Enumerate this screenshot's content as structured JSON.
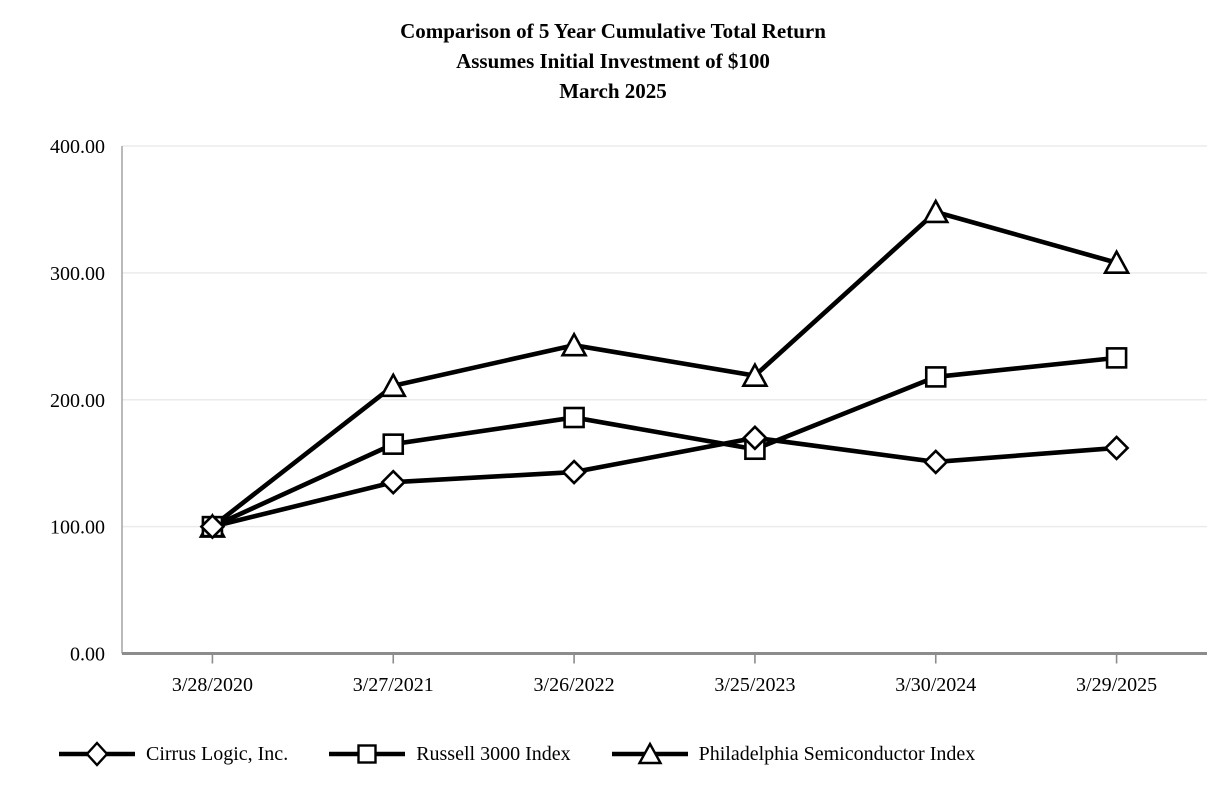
{
  "title": {
    "line1": "Comparison of 5 Year Cumulative Total Return",
    "line2": "Assumes Initial Investment of $100",
    "line3": "March 2025"
  },
  "chart_data": {
    "type": "line",
    "title": "Comparison of 5 Year Cumulative Total Return",
    "subtitle": "Assumes Initial Investment of $100",
    "subtitle2": "March 2025",
    "categories": [
      "3/28/2020",
      "3/27/2021",
      "3/26/2022",
      "3/25/2023",
      "3/30/2024",
      "3/29/2025"
    ],
    "series": [
      {
        "name": "Cirrus Logic, Inc.",
        "marker": "diamond",
        "values": [
          100,
          135,
          143,
          170,
          151,
          162
        ]
      },
      {
        "name": "Russell 3000 Index",
        "marker": "square",
        "values": [
          100,
          165,
          186,
          161,
          218,
          233
        ]
      },
      {
        "name": "Philadelphia Semiconductor Index",
        "marker": "triangle",
        "values": [
          100,
          211,
          243,
          219,
          348,
          308
        ]
      }
    ],
    "xlabel": "",
    "ylabel": "",
    "ylim": [
      0,
      400
    ],
    "yticks": [
      0,
      100,
      200,
      300,
      400
    ],
    "ytick_labels": [
      "0.00",
      "100.00",
      "200.00",
      "300.00",
      "400.00"
    ],
    "grid": true,
    "legend_position": "bottom",
    "colors": {
      "series_line": "#000000",
      "marker_fill": "#ffffff",
      "marker_stroke": "#000000",
      "grid": "#ebebeb",
      "axis": "#8c8c8c",
      "left_axis": "#a8a8a8",
      "text": "#000000"
    }
  }
}
